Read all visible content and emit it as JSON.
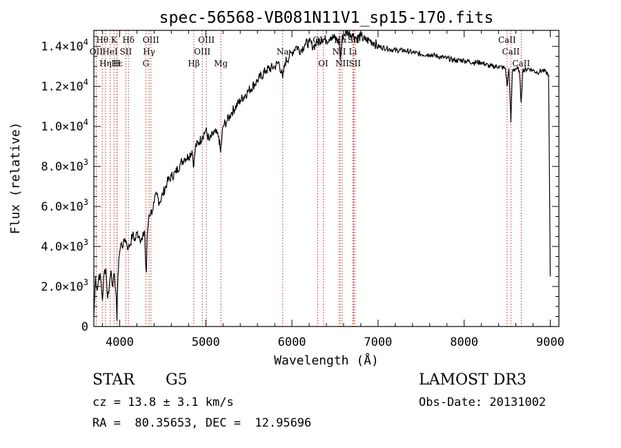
{
  "colors": {
    "spectrum": "#000000",
    "line_marker": "#cc2222",
    "axis": "#000000",
    "background": "#ffffff"
  },
  "chart_data": {
    "type": "line",
    "title": "spec-56568-VB081N11V1_sp15-170.fits",
    "xlabel": "Wavelength (Å)",
    "ylabel": "Flux (relative)",
    "xlim": [
      3700,
      9100
    ],
    "ylim": [
      0,
      14800
    ],
    "x_ticks": [
      4000,
      5000,
      6000,
      7000,
      8000,
      9000
    ],
    "x_tick_labels": [
      "4000",
      "5000",
      "6000",
      "7000",
      "8000",
      "9000"
    ],
    "y_ticks": [
      0,
      2000,
      4000,
      6000,
      8000,
      10000,
      12000,
      14000
    ],
    "y_tick_labels": [
      {
        "mant": "0",
        "exp": ""
      },
      {
        "mant": "2.0×10",
        "exp": "3"
      },
      {
        "mant": "4.0×10",
        "exp": "3"
      },
      {
        "mant": "6.0×10",
        "exp": "3"
      },
      {
        "mant": "8.0×10",
        "exp": "3"
      },
      {
        "mant": "1.0×10",
        "exp": "4"
      },
      {
        "mant": "1.2×10",
        "exp": "4"
      },
      {
        "mant": "1.4×10",
        "exp": "4"
      }
    ],
    "series": [
      {
        "name": "spectrum",
        "points": [
          [
            3700,
            500
          ],
          [
            3720,
            2500
          ],
          [
            3740,
            1800
          ],
          [
            3760,
            2600
          ],
          [
            3780,
            2400
          ],
          [
            3800,
            1300
          ],
          [
            3820,
            2700
          ],
          [
            3840,
            2900
          ],
          [
            3860,
            1400
          ],
          [
            3880,
            2100
          ],
          [
            3900,
            2800
          ],
          [
            3920,
            2000
          ],
          [
            3940,
            2600
          ],
          [
            3960,
            1500
          ],
          [
            3968,
            300
          ],
          [
            3980,
            2500
          ],
          [
            3990,
            3400
          ],
          [
            4000,
            3700
          ],
          [
            4020,
            4200
          ],
          [
            4040,
            4000
          ],
          [
            4060,
            4400
          ],
          [
            4080,
            4200
          ],
          [
            4100,
            3900
          ],
          [
            4120,
            4100
          ],
          [
            4150,
            4600
          ],
          [
            4180,
            4300
          ],
          [
            4200,
            4700
          ],
          [
            4230,
            4500
          ],
          [
            4260,
            4300
          ],
          [
            4290,
            4800
          ],
          [
            4300,
            3200
          ],
          [
            4310,
            2700
          ],
          [
            4320,
            4600
          ],
          [
            4340,
            5600
          ],
          [
            4360,
            5700
          ],
          [
            4380,
            5800
          ],
          [
            4400,
            6200
          ],
          [
            4430,
            6600
          ],
          [
            4460,
            6200
          ],
          [
            4500,
            6600
          ],
          [
            4550,
            7200
          ],
          [
            4600,
            7500
          ],
          [
            4650,
            7700
          ],
          [
            4700,
            8100
          ],
          [
            4750,
            8400
          ],
          [
            4800,
            8500
          ],
          [
            4840,
            8800
          ],
          [
            4861,
            8000
          ],
          [
            4880,
            9000
          ],
          [
            4920,
            9200
          ],
          [
            4960,
            9500
          ],
          [
            5000,
            9800
          ],
          [
            5040,
            9300
          ],
          [
            5100,
            9700
          ],
          [
            5150,
            9500
          ],
          [
            5172,
            8700
          ],
          [
            5200,
            10000
          ],
          [
            5250,
            10300
          ],
          [
            5300,
            10700
          ],
          [
            5400,
            11300
          ],
          [
            5500,
            11800
          ],
          [
            5600,
            12300
          ],
          [
            5700,
            12800
          ],
          [
            5800,
            13000
          ],
          [
            5850,
            13200
          ],
          [
            5893,
            12400
          ],
          [
            5920,
            13200
          ],
          [
            6000,
            13700
          ],
          [
            6050,
            14000
          ],
          [
            6100,
            13800
          ],
          [
            6150,
            14100
          ],
          [
            6200,
            14200
          ],
          [
            6250,
            14000
          ],
          [
            6300,
            14200
          ],
          [
            6350,
            14400
          ],
          [
            6400,
            14300
          ],
          [
            6450,
            14500
          ],
          [
            6500,
            14400
          ],
          [
            6550,
            14200
          ],
          [
            6563,
            13300
          ],
          [
            6580,
            14300
          ],
          [
            6600,
            14600
          ],
          [
            6650,
            14700
          ],
          [
            6700,
            14600
          ],
          [
            6750,
            14400
          ],
          [
            6800,
            14500
          ],
          [
            6850,
            14300
          ],
          [
            6900,
            14300
          ],
          [
            6950,
            14200
          ],
          [
            7000,
            14000
          ],
          [
            7100,
            13900
          ],
          [
            7200,
            13800
          ],
          [
            7300,
            13800
          ],
          [
            7400,
            13700
          ],
          [
            7500,
            13600
          ],
          [
            7600,
            13600
          ],
          [
            7700,
            13500
          ],
          [
            7800,
            13400
          ],
          [
            7900,
            13300
          ],
          [
            8000,
            13300
          ],
          [
            8100,
            13200
          ],
          [
            8200,
            13200
          ],
          [
            8300,
            13000
          ],
          [
            8400,
            13000
          ],
          [
            8480,
            12900
          ],
          [
            8498,
            12000
          ],
          [
            8520,
            12900
          ],
          [
            8542,
            10200
          ],
          [
            8560,
            12800
          ],
          [
            8600,
            12900
          ],
          [
            8640,
            12800
          ],
          [
            8662,
            11200
          ],
          [
            8680,
            12800
          ],
          [
            8750,
            12900
          ],
          [
            8800,
            12800
          ],
          [
            8850,
            12700
          ],
          [
            8900,
            12800
          ],
          [
            8950,
            12700
          ],
          [
            8980,
            12600
          ],
          [
            9000,
            2500
          ]
        ]
      }
    ],
    "line_markers": [
      {
        "wl": 3727,
        "label": "OII",
        "row": 1
      },
      {
        "wl": 3798,
        "label": "Hθ",
        "row": 0
      },
      {
        "wl": 3835,
        "label": "Hη",
        "row": 2
      },
      {
        "wl": 3889,
        "label": "HeI",
        "row": 1
      },
      {
        "wl": 3934,
        "label": "K",
        "row": 0
      },
      {
        "wl": 3970,
        "label": "Hε",
        "row": 2
      },
      {
        "wl": 3968,
        "label": "H",
        "row": 2
      },
      {
        "wl": 4072,
        "label": "SII",
        "row": 1
      },
      {
        "wl": 4102,
        "label": "Hδ",
        "row": 0
      },
      {
        "wl": 4304,
        "label": "G",
        "row": 2
      },
      {
        "wl": 4341,
        "label": "Hγ",
        "row": 1
      },
      {
        "wl": 4363,
        "label": "OIII",
        "row": 0
      },
      {
        "wl": 4861,
        "label": "Hβ",
        "row": 2
      },
      {
        "wl": 4959,
        "label": "OIII",
        "row": 1
      },
      {
        "wl": 5007,
        "label": "OIII",
        "row": 0
      },
      {
        "wl": 5175,
        "label": "Mg",
        "row": 2
      },
      {
        "wl": 5893,
        "label": "Na",
        "row": 1
      },
      {
        "wl": 6300,
        "label": "OI",
        "row": 0
      },
      {
        "wl": 6364,
        "label": "OI",
        "row": 2
      },
      {
        "wl": 6548,
        "label": "NII",
        "row": 1
      },
      {
        "wl": 6563,
        "label": "Hα",
        "row": 0
      },
      {
        "wl": 6584,
        "label": "NII",
        "row": 2
      },
      {
        "wl": 6708,
        "label": "Li",
        "row": 1
      },
      {
        "wl": 6717,
        "label": "SII",
        "row": 0
      },
      {
        "wl": 6731,
        "label": "SII",
        "row": 2
      },
      {
        "wl": 8498,
        "label": "CaII",
        "row": 0
      },
      {
        "wl": 8542,
        "label": "CaII",
        "row": 1
      },
      {
        "wl": 8662,
        "label": "CaII",
        "row": 2
      }
    ]
  },
  "info": {
    "object_class": "STAR",
    "subclass": "G5",
    "survey": "LAMOST DR3",
    "redshift": "cz = 13.8 ± 3.1 km/s",
    "obs_date": "Obs-Date: 20131002",
    "coords": "RA =  80.35653, DEC =  12.95696"
  }
}
